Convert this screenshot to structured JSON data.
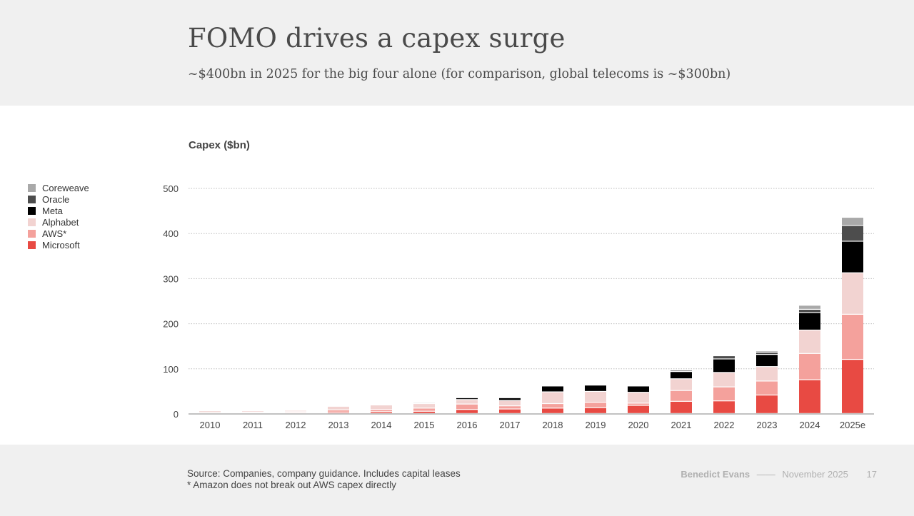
{
  "header": {
    "title": "FOMO drives a capex surge",
    "subtitle": "~$400bn in 2025 for the big four alone (for comparison, global telecoms is ~$300bn)"
  },
  "footer": {
    "source_line1": "Source: Companies, company guidance. Includes capital leases",
    "source_line2": "* Amazon does not break out AWS capex directly",
    "author": "Benedict Evans",
    "separator": "——",
    "date": "November 2025",
    "page": "17"
  },
  "colors": {
    "Microsoft": "#e84a43",
    "AWS*": "#f4a19c",
    "Alphabet": "#f2d3d1",
    "Meta": "#000000",
    "Oracle": "#4d4d4d",
    "Coreweave": "#a9a9a9"
  },
  "chart_data": {
    "type": "bar",
    "stacked": true,
    "ylabel": "Capex ($bn)",
    "ylim": [
      0,
      500
    ],
    "yticks": [
      0,
      100,
      200,
      300,
      400,
      500
    ],
    "grid": true,
    "legend_position": "left",
    "categories": [
      "2010",
      "2011",
      "2012",
      "2013",
      "2014",
      "2015",
      "2016",
      "2017",
      "2018",
      "2019",
      "2020",
      "2021",
      "2022",
      "2023",
      "2024",
      "2025e"
    ],
    "series": [
      {
        "name": "Microsoft",
        "values": [
          1,
          1,
          2,
          3,
          4,
          5,
          9,
          10,
          12,
          13,
          18,
          27,
          28,
          41,
          75,
          120
        ]
      },
      {
        "name": "AWS*",
        "values": [
          1,
          2,
          2,
          5,
          5,
          7,
          12,
          7,
          10,
          12,
          5,
          24,
          31,
          31,
          58,
          100
        ]
      },
      {
        "name": "Alphabet",
        "values": [
          4,
          3,
          3,
          8,
          10,
          10,
          10,
          12,
          26,
          24,
          24,
          26,
          32,
          32,
          52,
          92
        ]
      },
      {
        "name": "Meta",
        "values": [
          0,
          0,
          1,
          1,
          1,
          2,
          4,
          6,
          13,
          14,
          14,
          16,
          30,
          27,
          39,
          70
        ]
      },
      {
        "name": "Oracle",
        "values": [
          0,
          0,
          0,
          0,
          0,
          0,
          0,
          0,
          0,
          0,
          0,
          3,
          7,
          5,
          7,
          35
        ]
      },
      {
        "name": "Coreweave",
        "values": [
          0,
          0,
          0,
          0,
          0,
          0,
          0,
          0,
          0,
          0,
          0,
          0,
          0,
          3,
          9,
          18
        ]
      }
    ],
    "legend_order": [
      "Coreweave",
      "Oracle",
      "Meta",
      "Alphabet",
      "AWS*",
      "Microsoft"
    ]
  }
}
